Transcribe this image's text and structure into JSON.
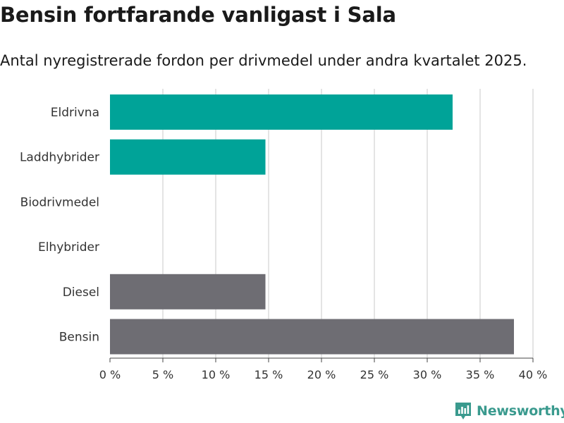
{
  "header": {
    "title": "Bensin fortfarande vanligast i Sala",
    "subtitle": "Antal nyregistrerade fordon per drivmedel under andra kvartalet 2025."
  },
  "brand": {
    "name": "Newsworthy",
    "icon": "bar-chart-logo-icon",
    "color": "#3a9a8e"
  },
  "colors": {
    "electrified": "#00a398",
    "fossil": "#6e6d73",
    "grid": "#dcdcdc"
  },
  "chart_data": {
    "type": "bar",
    "orientation": "horizontal",
    "categories": [
      "Eldrivna",
      "Laddhybrider",
      "Biodrivmedel",
      "Elhybrider",
      "Diesel",
      "Bensin"
    ],
    "values": [
      32.4,
      14.7,
      0,
      0,
      14.7,
      38.2
    ],
    "bar_groups": [
      "electrified",
      "electrified",
      "electrified",
      "electrified",
      "fossil",
      "fossil"
    ],
    "xlim": [
      0,
      40
    ],
    "xticks": [
      0,
      5,
      10,
      15,
      20,
      25,
      30,
      35,
      40
    ],
    "xtick_labels": [
      "0 %",
      "5 %",
      "10 %",
      "15 %",
      "20 %",
      "25 %",
      "30 %",
      "35 %",
      "40 %"
    ],
    "grid": true,
    "legend": "none"
  }
}
